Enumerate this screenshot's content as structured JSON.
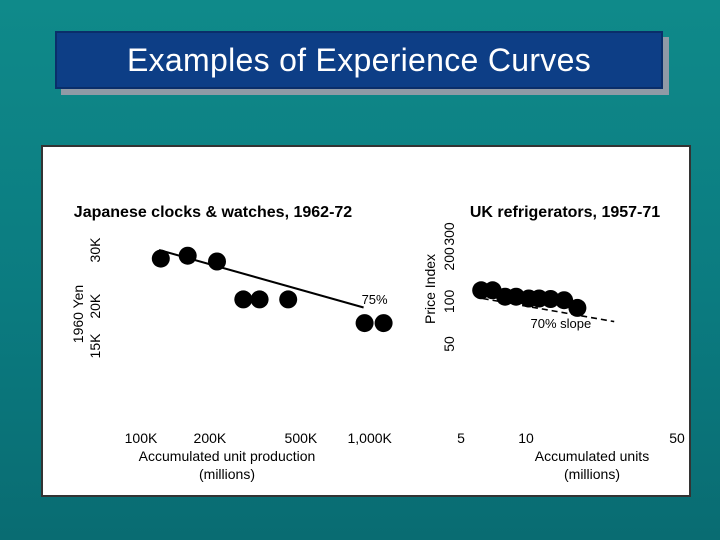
{
  "slide": {
    "title": "Examples of Experience Curves"
  },
  "chart_data": [
    {
      "type": "scatter",
      "title": "Japanese clocks & watches, 1962-72",
      "xlabel": "Accumulated unit production (millions)",
      "xlabel_lines": [
        "Accumulated unit production",
        "(millions)"
      ],
      "ylabel": "1960 Yen",
      "x_scale": "log",
      "y_scale": "log",
      "xlim": [
        100000,
        1500000
      ],
      "ylim": [
        15000,
        30000
      ],
      "x_ticks": [
        {
          "value": 100000,
          "label": "100K"
        },
        {
          "value": 200000,
          "label": "200K"
        },
        {
          "value": 500000,
          "label": "500K"
        },
        {
          "value": 1000000,
          "label": "1,000K"
        }
      ],
      "y_ticks": [
        {
          "value": 15000,
          "label": "15K"
        },
        {
          "value": 20000,
          "label": "20K"
        },
        {
          "value": 30000,
          "label": "30K"
        }
      ],
      "points": [
        {
          "x": 122000,
          "y": 28200
        },
        {
          "x": 160000,
          "y": 28800
        },
        {
          "x": 215000,
          "y": 27600
        },
        {
          "x": 280000,
          "y": 21000
        },
        {
          "x": 330000,
          "y": 21000
        },
        {
          "x": 440000,
          "y": 21000
        },
        {
          "x": 950000,
          "y": 17700
        },
        {
          "x": 1150000,
          "y": 17700
        }
      ],
      "trend_line": {
        "x": [
          120000,
          940000
        ],
        "y": [
          30000,
          19800
        ],
        "style": "solid"
      },
      "annotation": {
        "text": "75%",
        "x": 1050000,
        "y": 20300
      }
    },
    {
      "type": "scatter",
      "title": "UK refrigerators, 1957-71",
      "xlabel": "Accumulated units (millions)",
      "xlabel_lines": [
        "Accumulated units",
        "(millions)"
      ],
      "ylabel": "Price Index",
      "x_scale": "log",
      "y_scale": "log",
      "xlim": [
        5,
        50
      ],
      "ylim": [
        50,
        300
      ],
      "x_ticks": [
        {
          "value": 5,
          "label": "5"
        },
        {
          "value": 10,
          "label": "10"
        },
        {
          "value": 50,
          "label": "50"
        }
      ],
      "y_ticks": [
        {
          "value": 50,
          "label": "50"
        },
        {
          "value": 100,
          "label": "100"
        },
        {
          "value": 200,
          "label": "200"
        },
        {
          "value": 300,
          "label": "300"
        }
      ],
      "points": [
        {
          "x": 6.2,
          "y": 120
        },
        {
          "x": 7.0,
          "y": 120
        },
        {
          "x": 8.0,
          "y": 108
        },
        {
          "x": 9.0,
          "y": 108
        },
        {
          "x": 10.3,
          "y": 105
        },
        {
          "x": 11.5,
          "y": 105
        },
        {
          "x": 13.0,
          "y": 104
        },
        {
          "x": 15.0,
          "y": 102
        },
        {
          "x": 17.3,
          "y": 90
        }
      ],
      "trend_line": {
        "x": [
          6.3,
          25.6
        ],
        "y": [
          105,
          72
        ],
        "style": "dashed"
      },
      "annotation": {
        "text": "70% slope",
        "x": 14.5,
        "y": 65
      }
    }
  ]
}
